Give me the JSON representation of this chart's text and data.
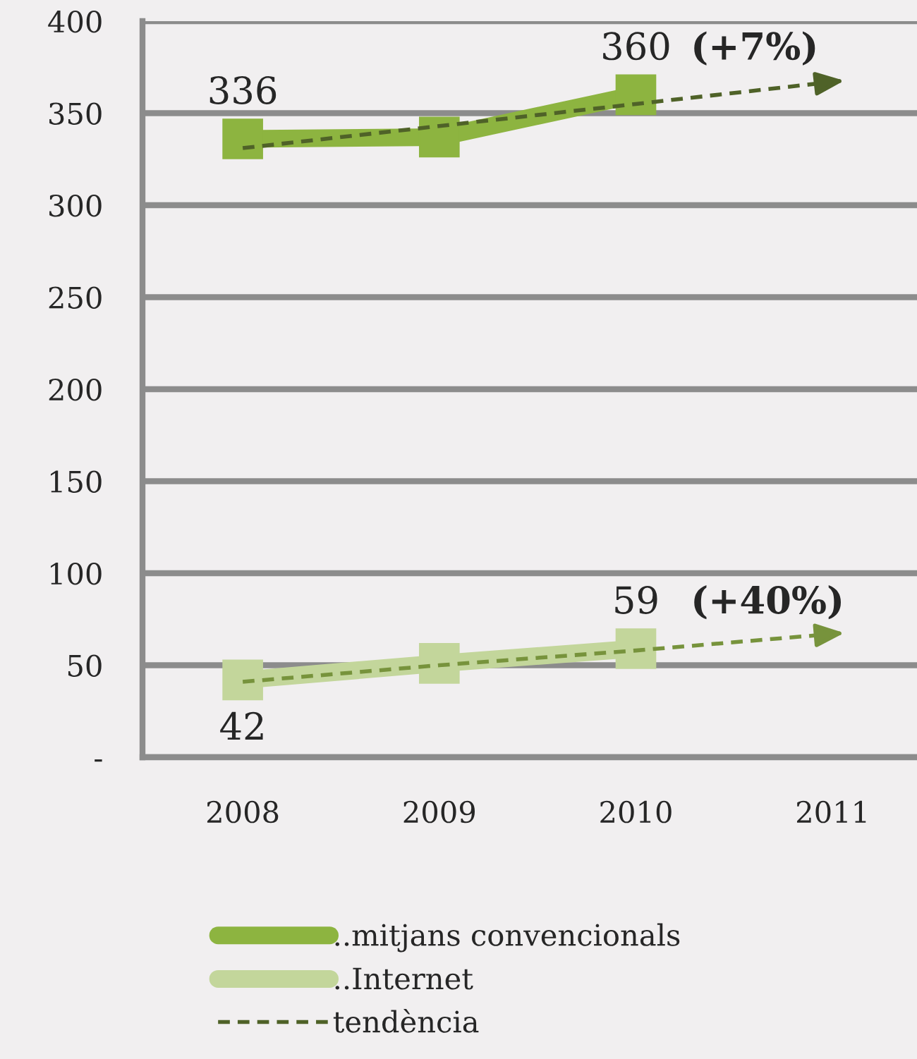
{
  "chart_data": {
    "type": "line",
    "categories": [
      "2008",
      "2009",
      "2010",
      "2011"
    ],
    "series": [
      {
        "name": "..mitjans convencionals",
        "color": "#8db440",
        "values": [
          336,
          337,
          360,
          null
        ],
        "value_labels": [
          "336",
          null,
          "360",
          null
        ],
        "marker": "square",
        "line_style": "solid"
      },
      {
        "name": "..Internet",
        "color": "#c3d69b",
        "values": [
          42,
          51,
          59,
          null
        ],
        "value_labels": [
          "42",
          null,
          "59",
          null
        ],
        "marker": "square",
        "line_style": "solid"
      },
      {
        "name": "tendència",
        "color": "#4f6228",
        "values": [
          331,
          343,
          355,
          367
        ],
        "marker": "none",
        "line_style": "dashed"
      },
      {
        "color": "#77933c",
        "values": [
          41,
          50,
          58,
          67
        ],
        "marker": "none",
        "line_style": "dashed"
      }
    ],
    "annotations": [
      {
        "text": "(+7%)",
        "x": "2010",
        "y": 360
      },
      {
        "text": "(+40%)",
        "x": "2010",
        "y": 59
      }
    ],
    "ylim": [
      0,
      400
    ],
    "yticks": [
      {
        "value": 0,
        "label": "-"
      },
      50,
      100,
      150,
      200,
      250,
      300,
      350,
      400
    ],
    "grid": "y",
    "legend": "bottom"
  }
}
